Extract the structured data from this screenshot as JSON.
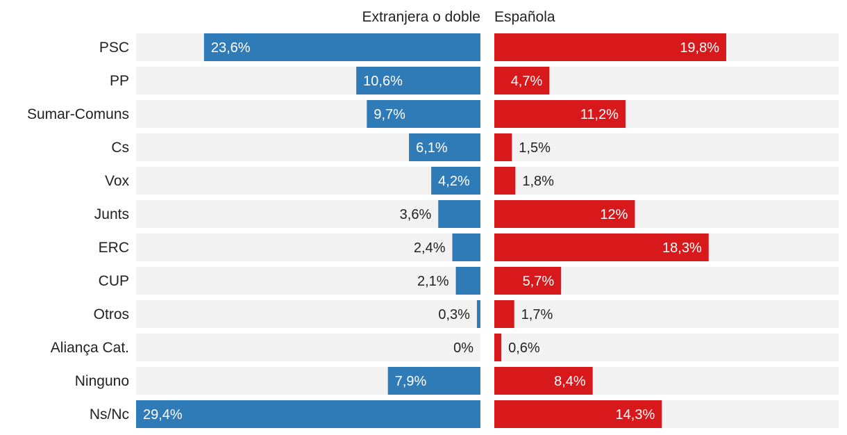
{
  "chart_data": {
    "type": "bar",
    "orientation": "horizontal-diverging",
    "column_titles": {
      "left": "Extranjera o doble",
      "right": "Española"
    },
    "categories": [
      "PSC",
      "PP",
      "Sumar-Comuns",
      "Cs",
      "Vox",
      "Junts",
      "ERC",
      "CUP",
      "Otros",
      "Aliança Cat.",
      "Ninguno",
      "Ns/Nc"
    ],
    "series": [
      {
        "name": "Extranjera o doble",
        "side": "left",
        "color": "#2e7bb8",
        "values": [
          23.6,
          10.6,
          9.7,
          6.1,
          4.2,
          3.6,
          2.4,
          2.1,
          0.3,
          0,
          7.9,
          29.4
        ],
        "labels": [
          "23,6%",
          "10,6%",
          "9,7%",
          "6,1%",
          "4,2%",
          "3,6%",
          "2,4%",
          "2,1%",
          "0,3%",
          "0%",
          "7,9%",
          "29,4%"
        ]
      },
      {
        "name": "Española",
        "side": "right",
        "color": "#d7191c",
        "values": [
          19.8,
          4.7,
          11.2,
          1.5,
          1.8,
          12,
          18.3,
          5.7,
          1.7,
          0.6,
          8.4,
          14.3
        ],
        "labels": [
          "19,8%",
          "4,7%",
          "11,2%",
          "1,5%",
          "1,8%",
          "12%",
          "18,3%",
          "5,7%",
          "1,7%",
          "0,6%",
          "8,4%",
          "14,3%"
        ]
      }
    ],
    "xlim": [
      0,
      29.4
    ],
    "track_color": "#f2f2f2",
    "grid": false,
    "legend": "none"
  }
}
